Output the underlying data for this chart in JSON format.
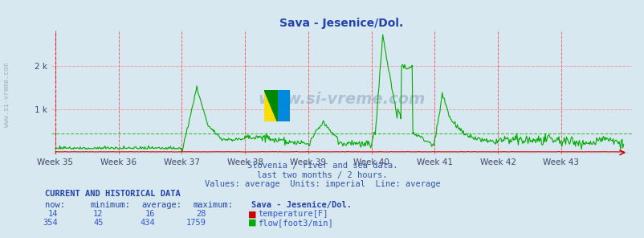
{
  "title": "Sava - Jesenice/Dol.",
  "subtitle1": "Slovenia / river and sea data.",
  "subtitle2": "last two months / 2 hours.",
  "subtitle3": "Values: average  Units: imperial  Line: average",
  "bg_color": "#d8e8f0",
  "plot_bg_color": "#d8e8f0",
  "grid_color_h_red": "#ff9999",
  "grid_color_v_red": "#ff6666",
  "grid_color_green": "#66cc66",
  "week_labels": [
    "Week 35",
    "Week 36",
    "Week 37",
    "Week 38",
    "Week 39",
    "Week 40",
    "Week 41",
    "Week 42",
    "Week 43"
  ],
  "x_ticks": [
    0,
    84,
    168,
    252,
    336,
    420,
    504,
    588,
    672
  ],
  "x_max": 756,
  "y_max": 2800,
  "y_ticks": [
    0,
    1000,
    2000
  ],
  "y_tick_labels": [
    "",
    "1 k",
    "2 k"
  ],
  "temp_color": "#cc0000",
  "flow_color": "#00aa00",
  "average_flow": 434,
  "average_temp": 16,
  "watermark": "www.si-vreme.com",
  "left_label": "www.si-vreme.com",
  "table_header": "CURRENT AND HISTORICAL DATA",
  "table_cols": [
    "now:",
    "minimum:",
    "average:",
    "maximum:",
    "Sava - Jesenice/Dol."
  ],
  "temp_row": [
    "14",
    "12",
    "16",
    "28",
    "temperature[F]"
  ],
  "flow_row": [
    "354",
    "45",
    "434",
    "1759",
    "flow[foot3/min]"
  ],
  "logo_colors": [
    "#ffff00",
    "#00aaff",
    "#008800"
  ],
  "dashed_line_y": 434,
  "red_dashed_y1": 1000,
  "red_dashed_y2": 2000
}
